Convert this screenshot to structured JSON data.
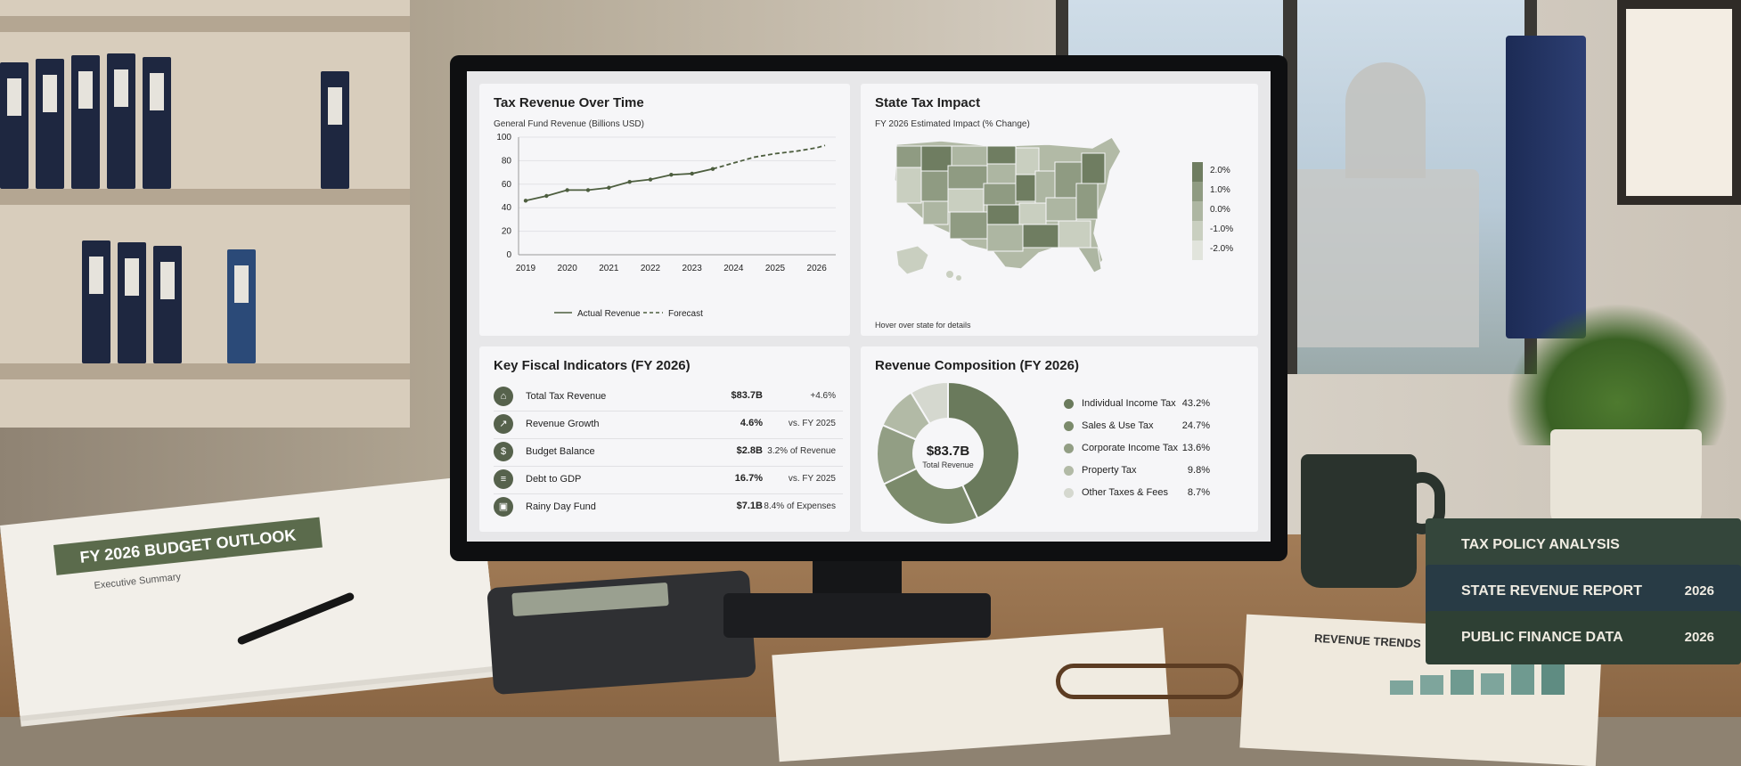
{
  "papers": {
    "title": "FY 2026 BUDGET OUTLOOK",
    "subtitle": "Executive Summary"
  },
  "books": [
    {
      "title": "TAX POLICY ANALYSIS",
      "year": ""
    },
    {
      "title": "STATE REVENUE REPORT",
      "year": "2026"
    },
    {
      "title": "PUBLIC FINANCE DATA",
      "year": "2026"
    }
  ],
  "desk_report": {
    "title": "REVENUE TRENDS"
  },
  "dashboard": {
    "revenue_chart": {
      "title": "Tax Revenue Over Time",
      "subtitle": "General Fund Revenue (Billions USD)",
      "legend_actual": "Actual Revenue",
      "legend_forecast": "Forecast"
    },
    "map": {
      "title": "State Tax Impact",
      "subtitle": "FY 2026 Estimated Impact (% Change)",
      "footer": "Hover over state for details",
      "legend": [
        "2.0%",
        "1.0%",
        "0.0%",
        "-1.0%",
        "-2.0%"
      ],
      "legend_colors": [
        "#6f7d61",
        "#8f9b82",
        "#adb6a2",
        "#c9cfc0",
        "#e1e4dc"
      ]
    },
    "kpi": {
      "title": "Key Fiscal Indicators (FY 2026)",
      "rows": [
        {
          "icon": "bank-icon",
          "glyph": "⌂",
          "label": "Total Tax Revenue",
          "value": "$83.7B",
          "note": "+4.6%"
        },
        {
          "icon": "growth-chart-icon",
          "glyph": "↗",
          "label": "Revenue Growth",
          "value": "4.6%",
          "note": "vs. FY 2025"
        },
        {
          "icon": "balance-icon",
          "glyph": "$",
          "label": "Budget Balance",
          "value": "$2.8B",
          "note": "3.2% of Revenue"
        },
        {
          "icon": "debt-icon",
          "glyph": "≡",
          "label": "Debt to GDP",
          "value": "16.7%",
          "note": "vs. FY 2025"
        },
        {
          "icon": "reserve-icon",
          "glyph": "▣",
          "label": "Rainy Day Fund",
          "value": "$7.1B",
          "note": "8.4% of Expenses"
        }
      ]
    },
    "composition": {
      "title": "Revenue Composition (FY 2026)",
      "center_value": "$83.7B",
      "center_label": "Total Revenue"
    }
  },
  "chart_data": [
    {
      "type": "line",
      "title": "Tax Revenue Over Time",
      "ylabel": "General Fund Revenue (Billions USD)",
      "xlabel": "",
      "x_ticks": [
        "2019",
        "2020",
        "2021",
        "2022",
        "2023",
        "2024",
        "2025",
        "2026"
      ],
      "y_ticks": [
        "0",
        "20",
        "40",
        "60",
        "80",
        "100"
      ],
      "ylim": [
        0,
        100
      ],
      "xlim": [
        2019,
        2026.2
      ],
      "grid": true,
      "legend": "bottom",
      "series": [
        {
          "name": "Actual Revenue",
          "style": "solid",
          "color": "#4d5e3f",
          "x": [
            2019,
            2019.5,
            2020,
            2020.5,
            2021,
            2021.5,
            2022,
            2022.5,
            2023,
            2023.5
          ],
          "y": [
            46,
            50,
            55,
            55,
            57,
            62,
            64,
            68,
            69,
            73
          ]
        },
        {
          "name": "Forecast",
          "style": "dashed",
          "color": "#4d5e3f",
          "x": [
            2023.5,
            2024,
            2024.5,
            2025,
            2025.5,
            2026,
            2026.2
          ],
          "y": [
            73,
            78,
            83,
            86,
            88,
            91,
            93
          ]
        }
      ]
    },
    {
      "type": "pie",
      "title": "Revenue Composition (FY 2026)",
      "legend": "right",
      "categories": [
        "Individual Income Tax",
        "Sales & Use Tax",
        "Corporate Income Tax",
        "Property Tax",
        "Other Taxes & Fees"
      ],
      "labels": [
        "43.2%",
        "24.7%",
        "13.6%",
        "9.8%",
        "8.7%"
      ],
      "values": [
        43.2,
        24.7,
        13.6,
        9.8,
        8.7
      ],
      "colors": [
        "#6a7a5c",
        "#7b8a6b",
        "#929e84",
        "#b2baa6",
        "#d5d8cf"
      ]
    }
  ]
}
